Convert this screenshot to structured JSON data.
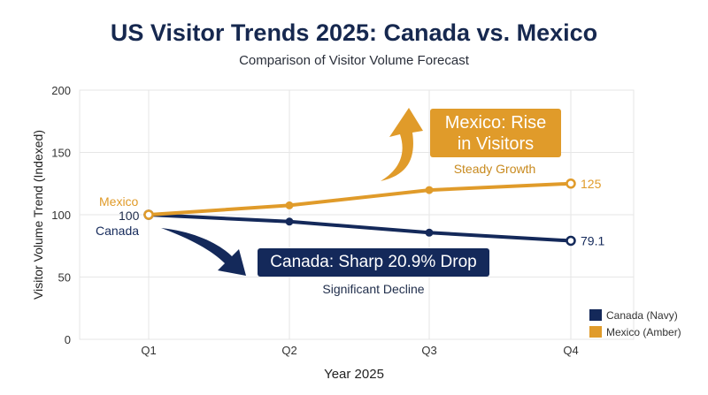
{
  "title": "US Visitor Trends 2025: Canada vs. Mexico",
  "subtitle": "Comparison of Visitor Volume Forecast",
  "colors": {
    "canada": "#14295a",
    "mexico": "#e09b2a",
    "grid": "#e6e6e6"
  },
  "callouts": {
    "mexico": {
      "line1": "Mexico: Rise",
      "line2": "in Visitors",
      "note": "Steady Growth"
    },
    "canada": {
      "text": "Canada: Sharp 20.9% Drop",
      "note": "Significant Decline"
    }
  },
  "chart_data": {
    "type": "line",
    "title": "US Visitor Trends 2025: Canada vs. Mexico",
    "subtitle": "Comparison of Visitor Volume Forecast",
    "xlabel": "Year 2025",
    "ylabel": "Visitor Volume Trend (Indexed)",
    "categories": [
      "Q1",
      "Q2",
      "Q3",
      "Q4"
    ],
    "ylim": [
      0,
      200
    ],
    "yticks": [
      0,
      50,
      100,
      150,
      200
    ],
    "grid": true,
    "legend_position": "bottom-right",
    "series": [
      {
        "name": "Canada (Navy)",
        "label": "Canada",
        "values": [
          100,
          94.5,
          85.6,
          79.1
        ],
        "end_label": "79.1",
        "color": "#14295a"
      },
      {
        "name": "Mexico (Amber)",
        "label": "Mexico",
        "values": [
          100,
          107.5,
          119.8,
          125
        ],
        "end_label": "125",
        "color": "#e09b2a"
      }
    ],
    "start_label": "100"
  }
}
